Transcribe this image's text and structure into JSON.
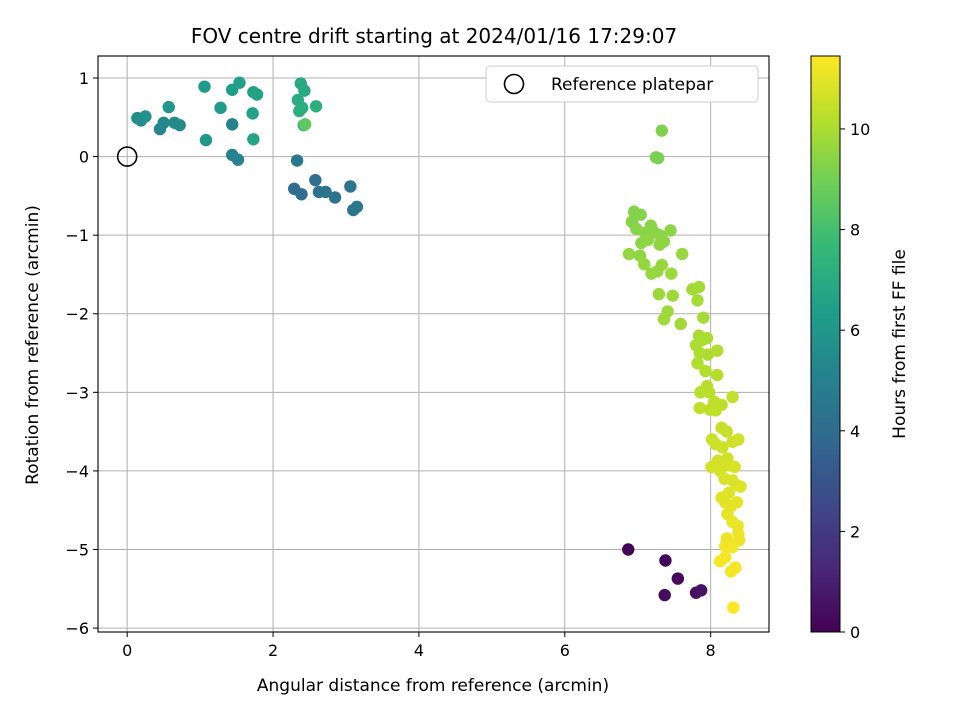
{
  "chart_data": {
    "type": "scatter",
    "title": "FOV centre drift starting at 2024/01/16 17:29:07",
    "xlabel": "Angular distance from reference (arcmin)",
    "ylabel": "Rotation from reference (arcmin)",
    "xlim": [
      -0.4,
      8.8
    ],
    "ylim": [
      -6.05,
      1.28
    ],
    "xticks": [
      0,
      2,
      4,
      6,
      8
    ],
    "yticks": [
      1,
      0,
      -1,
      -2,
      -3,
      -4,
      -5,
      -6
    ],
    "grid": true,
    "legend": {
      "placement": "top-right",
      "entries": [
        "Reference platepar"
      ]
    },
    "reference_point": {
      "x": 0,
      "y": 0
    },
    "colorbar": {
      "label": "Hours from first FF file",
      "colormap": "viridis",
      "range": [
        0,
        11.45
      ],
      "ticks": [
        0,
        2,
        4,
        6,
        8,
        10
      ]
    },
    "points": [
      {
        "x": 6.87,
        "y": -5.0,
        "c": 0.1
      },
      {
        "x": 7.38,
        "y": -5.14,
        "c": 0.2
      },
      {
        "x": 7.55,
        "y": -5.37,
        "c": 0.3
      },
      {
        "x": 7.37,
        "y": -5.58,
        "c": 0.4
      },
      {
        "x": 7.8,
        "y": -5.55,
        "c": 0.5
      },
      {
        "x": 7.87,
        "y": -5.52,
        "c": 0.6
      },
      {
        "x": 2.29,
        "y": -0.41,
        "c": 4.0
      },
      {
        "x": 2.39,
        "y": -0.48,
        "c": 4.1
      },
      {
        "x": 2.58,
        "y": -0.3,
        "c": 4.2
      },
      {
        "x": 2.63,
        "y": -0.45,
        "c": 4.3
      },
      {
        "x": 2.72,
        "y": -0.45,
        "c": 4.35
      },
      {
        "x": 2.85,
        "y": -0.52,
        "c": 4.4
      },
      {
        "x": 3.06,
        "y": -0.38,
        "c": 4.45
      },
      {
        "x": 3.1,
        "y": -0.68,
        "c": 4.5
      },
      {
        "x": 3.15,
        "y": -0.64,
        "c": 4.55
      },
      {
        "x": 2.33,
        "y": -0.05,
        "c": 4.6
      },
      {
        "x": 1.44,
        "y": 0.41,
        "c": 5.0
      },
      {
        "x": 1.44,
        "y": 0.02,
        "c": 5.0
      },
      {
        "x": 1.52,
        "y": -0.04,
        "c": 5.1
      },
      {
        "x": 0.45,
        "y": 0.35,
        "c": 5.2
      },
      {
        "x": 0.5,
        "y": 0.43,
        "c": 5.3
      },
      {
        "x": 0.65,
        "y": 0.43,
        "c": 5.4
      },
      {
        "x": 0.72,
        "y": 0.4,
        "c": 5.5
      },
      {
        "x": 0.14,
        "y": 0.49,
        "c": 5.6
      },
      {
        "x": 0.19,
        "y": 0.46,
        "c": 5.7
      },
      {
        "x": 0.25,
        "y": 0.51,
        "c": 5.8
      },
      {
        "x": 0.57,
        "y": 0.63,
        "c": 6.0
      },
      {
        "x": 1.08,
        "y": 0.21,
        "c": 6.1
      },
      {
        "x": 1.06,
        "y": 0.89,
        "c": 6.1
      },
      {
        "x": 1.28,
        "y": 0.62,
        "c": 6.2
      },
      {
        "x": 1.44,
        "y": 0.85,
        "c": 6.3
      },
      {
        "x": 1.54,
        "y": 0.94,
        "c": 6.4
      },
      {
        "x": 1.72,
        "y": 0.55,
        "c": 6.5
      },
      {
        "x": 1.73,
        "y": 0.82,
        "c": 6.6
      },
      {
        "x": 1.78,
        "y": 0.79,
        "c": 6.6
      },
      {
        "x": 1.73,
        "y": 0.22,
        "c": 6.7
      },
      {
        "x": 2.38,
        "y": 0.93,
        "c": 6.8
      },
      {
        "x": 2.43,
        "y": 0.84,
        "c": 6.9
      },
      {
        "x": 2.34,
        "y": 0.72,
        "c": 7.0
      },
      {
        "x": 2.36,
        "y": 0.58,
        "c": 7.1
      },
      {
        "x": 2.4,
        "y": 0.62,
        "c": 7.1
      },
      {
        "x": 2.59,
        "y": 0.64,
        "c": 7.2
      },
      {
        "x": 2.42,
        "y": 0.4,
        "c": 7.4
      },
      {
        "x": 2.44,
        "y": 0.41,
        "c": 8.6
      },
      {
        "x": 7.25,
        "y": -0.01,
        "c": 9.1
      },
      {
        "x": 7.28,
        "y": -0.02,
        "c": 9.1
      },
      {
        "x": 7.33,
        "y": 0.33,
        "c": 9.2
      },
      {
        "x": 6.95,
        "y": -0.7,
        "c": 9.3
      },
      {
        "x": 6.92,
        "y": -0.83,
        "c": 9.3
      },
      {
        "x": 7.04,
        "y": -0.74,
        "c": 9.3
      },
      {
        "x": 6.98,
        "y": -0.92,
        "c": 9.35
      },
      {
        "x": 7.1,
        "y": -0.97,
        "c": 9.35
      },
      {
        "x": 7.18,
        "y": -0.88,
        "c": 9.4
      },
      {
        "x": 7.22,
        "y": -0.96,
        "c": 9.4
      },
      {
        "x": 7.3,
        "y": -1.0,
        "c": 9.4
      },
      {
        "x": 7.45,
        "y": -0.94,
        "c": 9.45
      },
      {
        "x": 7.05,
        "y": -1.1,
        "c": 9.45
      },
      {
        "x": 7.14,
        "y": -1.06,
        "c": 9.5
      },
      {
        "x": 7.3,
        "y": -1.12,
        "c": 9.5
      },
      {
        "x": 7.36,
        "y": -1.08,
        "c": 9.5
      },
      {
        "x": 6.88,
        "y": -1.24,
        "c": 9.55
      },
      {
        "x": 7.03,
        "y": -1.26,
        "c": 9.55
      },
      {
        "x": 7.09,
        "y": -1.37,
        "c": 9.6
      },
      {
        "x": 7.19,
        "y": -1.49,
        "c": 9.6
      },
      {
        "x": 7.27,
        "y": -1.46,
        "c": 9.6
      },
      {
        "x": 7.33,
        "y": -1.38,
        "c": 9.65
      },
      {
        "x": 7.61,
        "y": -1.24,
        "c": 9.65
      },
      {
        "x": 7.46,
        "y": -1.49,
        "c": 9.7
      },
      {
        "x": 7.29,
        "y": -1.75,
        "c": 9.7
      },
      {
        "x": 7.48,
        "y": -1.77,
        "c": 9.75
      },
      {
        "x": 7.41,
        "y": -1.97,
        "c": 9.75
      },
      {
        "x": 7.36,
        "y": -2.07,
        "c": 9.8
      },
      {
        "x": 7.59,
        "y": -2.13,
        "c": 9.8
      },
      {
        "x": 7.75,
        "y": -1.69,
        "c": 9.85
      },
      {
        "x": 7.84,
        "y": -1.66,
        "c": 9.85
      },
      {
        "x": 7.82,
        "y": -1.83,
        "c": 9.9
      },
      {
        "x": 7.9,
        "y": -2.05,
        "c": 9.9
      },
      {
        "x": 7.84,
        "y": -2.28,
        "c": 9.95
      },
      {
        "x": 7.9,
        "y": -2.33,
        "c": 9.95
      },
      {
        "x": 7.95,
        "y": -2.31,
        "c": 10.0
      },
      {
        "x": 7.8,
        "y": -2.4,
        "c": 10.0
      },
      {
        "x": 7.85,
        "y": -2.5,
        "c": 10.05
      },
      {
        "x": 7.96,
        "y": -2.52,
        "c": 10.05
      },
      {
        "x": 8.09,
        "y": -2.47,
        "c": 10.1
      },
      {
        "x": 7.82,
        "y": -2.63,
        "c": 10.1
      },
      {
        "x": 7.93,
        "y": -2.73,
        "c": 10.15
      },
      {
        "x": 8.09,
        "y": -2.78,
        "c": 10.15
      },
      {
        "x": 7.95,
        "y": -2.92,
        "c": 10.2
      },
      {
        "x": 7.86,
        "y": -3.0,
        "c": 10.25
      },
      {
        "x": 7.98,
        "y": -3.0,
        "c": 10.25
      },
      {
        "x": 8.05,
        "y": -3.12,
        "c": 10.3
      },
      {
        "x": 8.15,
        "y": -3.16,
        "c": 10.3
      },
      {
        "x": 7.85,
        "y": -3.2,
        "c": 10.35
      },
      {
        "x": 7.99,
        "y": -3.22,
        "c": 10.35
      },
      {
        "x": 8.07,
        "y": -3.23,
        "c": 10.4
      },
      {
        "x": 8.3,
        "y": -3.06,
        "c": 10.4
      },
      {
        "x": 8.15,
        "y": -3.45,
        "c": 10.5
      },
      {
        "x": 8.22,
        "y": -3.5,
        "c": 10.5
      },
      {
        "x": 8.02,
        "y": -3.6,
        "c": 10.55
      },
      {
        "x": 8.07,
        "y": -3.66,
        "c": 10.55
      },
      {
        "x": 8.16,
        "y": -3.7,
        "c": 10.6
      },
      {
        "x": 8.3,
        "y": -3.63,
        "c": 10.6
      },
      {
        "x": 8.38,
        "y": -3.6,
        "c": 10.65
      },
      {
        "x": 8.23,
        "y": -3.84,
        "c": 10.65
      },
      {
        "x": 8.1,
        "y": -3.87,
        "c": 10.7
      },
      {
        "x": 8.01,
        "y": -3.95,
        "c": 10.7
      },
      {
        "x": 8.13,
        "y": -4.0,
        "c": 10.75
      },
      {
        "x": 8.25,
        "y": -3.93,
        "c": 10.75
      },
      {
        "x": 8.33,
        "y": -3.95,
        "c": 10.8
      },
      {
        "x": 8.19,
        "y": -4.1,
        "c": 10.8
      },
      {
        "x": 8.3,
        "y": -4.12,
        "c": 10.85
      },
      {
        "x": 8.35,
        "y": -4.18,
        "c": 10.85
      },
      {
        "x": 8.41,
        "y": -4.2,
        "c": 10.9
      },
      {
        "x": 8.25,
        "y": -4.28,
        "c": 10.9
      },
      {
        "x": 8.15,
        "y": -4.34,
        "c": 10.95
      },
      {
        "x": 8.2,
        "y": -4.4,
        "c": 10.95
      },
      {
        "x": 8.28,
        "y": -4.45,
        "c": 11.0
      },
      {
        "x": 8.36,
        "y": -4.4,
        "c": 11.0
      },
      {
        "x": 8.23,
        "y": -4.55,
        "c": 11.05
      },
      {
        "x": 8.3,
        "y": -4.65,
        "c": 11.1
      },
      {
        "x": 8.37,
        "y": -4.7,
        "c": 11.1
      },
      {
        "x": 8.38,
        "y": -4.8,
        "c": 11.15
      },
      {
        "x": 8.22,
        "y": -4.86,
        "c": 11.15
      },
      {
        "x": 8.39,
        "y": -4.88,
        "c": 11.2
      },
      {
        "x": 8.2,
        "y": -4.96,
        "c": 11.2
      },
      {
        "x": 8.3,
        "y": -4.97,
        "c": 11.25
      },
      {
        "x": 8.2,
        "y": -5.1,
        "c": 11.3
      },
      {
        "x": 8.13,
        "y": -5.15,
        "c": 11.3
      },
      {
        "x": 8.28,
        "y": -5.28,
        "c": 11.35
      },
      {
        "x": 8.34,
        "y": -5.23,
        "c": 11.35
      },
      {
        "x": 8.31,
        "y": -5.74,
        "c": 11.45
      }
    ]
  }
}
